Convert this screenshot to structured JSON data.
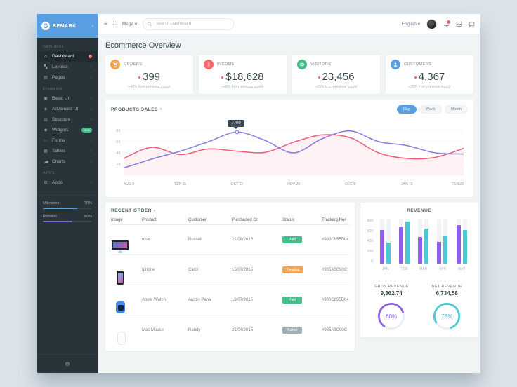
{
  "icons": {
    "caret_down": "▾",
    "chevron_right": "›",
    "hamburger": "≡",
    "grid_dots": "∷",
    "gear": "⚙"
  },
  "sidebar": {
    "logo": "REMARK",
    "sections": [
      "GENERAL",
      "Elements",
      "APPS"
    ],
    "items": [
      {
        "label": "Dashboard",
        "glyph": "⌂",
        "active": true,
        "badge_dot": true
      },
      {
        "label": "Layouts",
        "glyph": "▚"
      },
      {
        "label": "Pages",
        "glyph": "▤"
      },
      {
        "label": "Basic UI",
        "glyph": "▣"
      },
      {
        "label": "Advanced UI",
        "glyph": "◈"
      },
      {
        "label": "Structure",
        "glyph": "▥"
      },
      {
        "label": "Widgets",
        "glyph": "◆",
        "badge": "New"
      },
      {
        "label": "Forms",
        "glyph": "▭"
      },
      {
        "label": "Tables",
        "glyph": "▦"
      },
      {
        "label": "Charts",
        "glyph": "▂▅▇"
      },
      {
        "label": "Apps",
        "glyph": "⊞"
      }
    ],
    "progress": [
      {
        "label": "Milestone",
        "value": "70%",
        "pct": 70,
        "color": "#5b9fe3"
      },
      {
        "label": "Release",
        "value": "60%",
        "pct": 60,
        "color": "#7c6bd9"
      }
    ]
  },
  "header": {
    "mega_label": "Mega",
    "search_placeholder": "Search Dashboard",
    "language": "English"
  },
  "page": {
    "title": "Ecommerce Overview"
  },
  "stats": [
    {
      "label": "ORDERS",
      "value": "399",
      "delta": "+48% from previous month",
      "color": "#f2a654"
    },
    {
      "label": "INCOME",
      "value": "$18,628",
      "delta": "+48% from previous month",
      "color": "#f96868"
    },
    {
      "label": "VISITORS",
      "value": "23,456",
      "delta": "+25% from previous month",
      "color": "#46be8a"
    },
    {
      "label": "CUSTOMERS",
      "value": "4,367",
      "delta": "+25% from previous month",
      "color": "#5b9fe3"
    }
  ],
  "products_sales": {
    "title": "PRODUCTS SALES",
    "ranges": [
      "Day",
      "Week",
      "Month"
    ],
    "active_range": "Day",
    "tooltip": "7700"
  },
  "recent_orders": {
    "title": "RECENT ORDER",
    "columns": [
      "Image",
      "Product",
      "Customer",
      "Purchased On",
      "Status",
      "Tracking No#"
    ],
    "rows": [
      {
        "product": "Imac",
        "customer": "Russell",
        "purchased_on": "21/08/2015",
        "status": "Paid",
        "status_color": "#46be8a",
        "tracking": "#980C855D04"
      },
      {
        "product": "Iphone",
        "customer": "Carol",
        "purchased_on": "15/07/2015",
        "status": "Pending",
        "status_color": "#f2a654",
        "tracking": "#985A3C90C"
      },
      {
        "product": "Apple Watch",
        "customer": "Austin Pana",
        "purchased_on": "19/07/2015",
        "status": "Paid",
        "status_color": "#46be8a",
        "tracking": "#980C855D04"
      },
      {
        "product": "Mac Mouse",
        "customer": "Randy",
        "purchased_on": "21/04/2015",
        "status": "Failed",
        "status_color": "#a3afb7",
        "tracking": "#985A3C90C"
      }
    ]
  },
  "revenue": {
    "title": "REVENUE",
    "gross_label": "GROS REVENUE",
    "gross_value": "9,362,74",
    "net_label": "NET REVENUE",
    "net_value": "6,734,58",
    "gross_pct": "60%",
    "net_pct": "78%"
  },
  "chart_data": [
    {
      "type": "line",
      "title": "PRODUCTS SALES",
      "x_labels": [
        "AUG 8",
        "SEP 15",
        "OCT 22",
        "NOV 29",
        "DEC 8",
        "JAN 15",
        "FEB 22"
      ],
      "note": "series sampled at half-interval points between the 7 x labels; values in thousands",
      "ylim": [
        0,
        9
      ],
      "yticks": [
        {
          "v": 2,
          "label": "2K"
        },
        {
          "v": 4,
          "label": "4K"
        },
        {
          "v": 6,
          "label": "6K"
        },
        {
          "v": 8,
          "label": "8K"
        }
      ],
      "series": [
        {
          "name": "pink",
          "color": "#f25a78",
          "area_fill": true,
          "values": [
            3.0,
            5.0,
            3.7,
            4.7,
            4.3,
            4.1,
            5.9,
            7.2,
            6.7,
            4.0,
            3.0,
            3.2,
            4.8
          ]
        },
        {
          "name": "purple",
          "color": "#8878df",
          "area_fill": false,
          "values": [
            1.3,
            2.9,
            4.3,
            6.0,
            7.7,
            6.2,
            4.0,
            6.5,
            7.9,
            6.0,
            5.3,
            4.0,
            3.8
          ]
        }
      ],
      "tooltip": {
        "series": "purple",
        "point_index": 4,
        "label": "7700"
      },
      "grid": "dotted horizontal"
    },
    {
      "type": "bar",
      "title": "REVENUE",
      "categories": [
        "JAN",
        "FEB",
        "MAR",
        "APR",
        "MAY"
      ],
      "ylim": [
        0,
        900
      ],
      "yticks": [
        0,
        200,
        400,
        600,
        800
      ],
      "series": [
        {
          "name": "purple",
          "color": "#8f5fe8",
          "values": [
            680,
            730,
            530,
            430,
            770
          ]
        },
        {
          "name": "teal",
          "color": "#4ac9d5",
          "values": [
            420,
            840,
            710,
            560,
            670
          ]
        }
      ]
    },
    {
      "type": "pie",
      "title": "revenue donuts",
      "donuts": [
        {
          "label": "GROS REVENUE",
          "pct": 60,
          "color": "#8f5fe8"
        },
        {
          "label": "NET REVENUE",
          "pct": 78,
          "color": "#4ac9d5"
        }
      ]
    }
  ]
}
